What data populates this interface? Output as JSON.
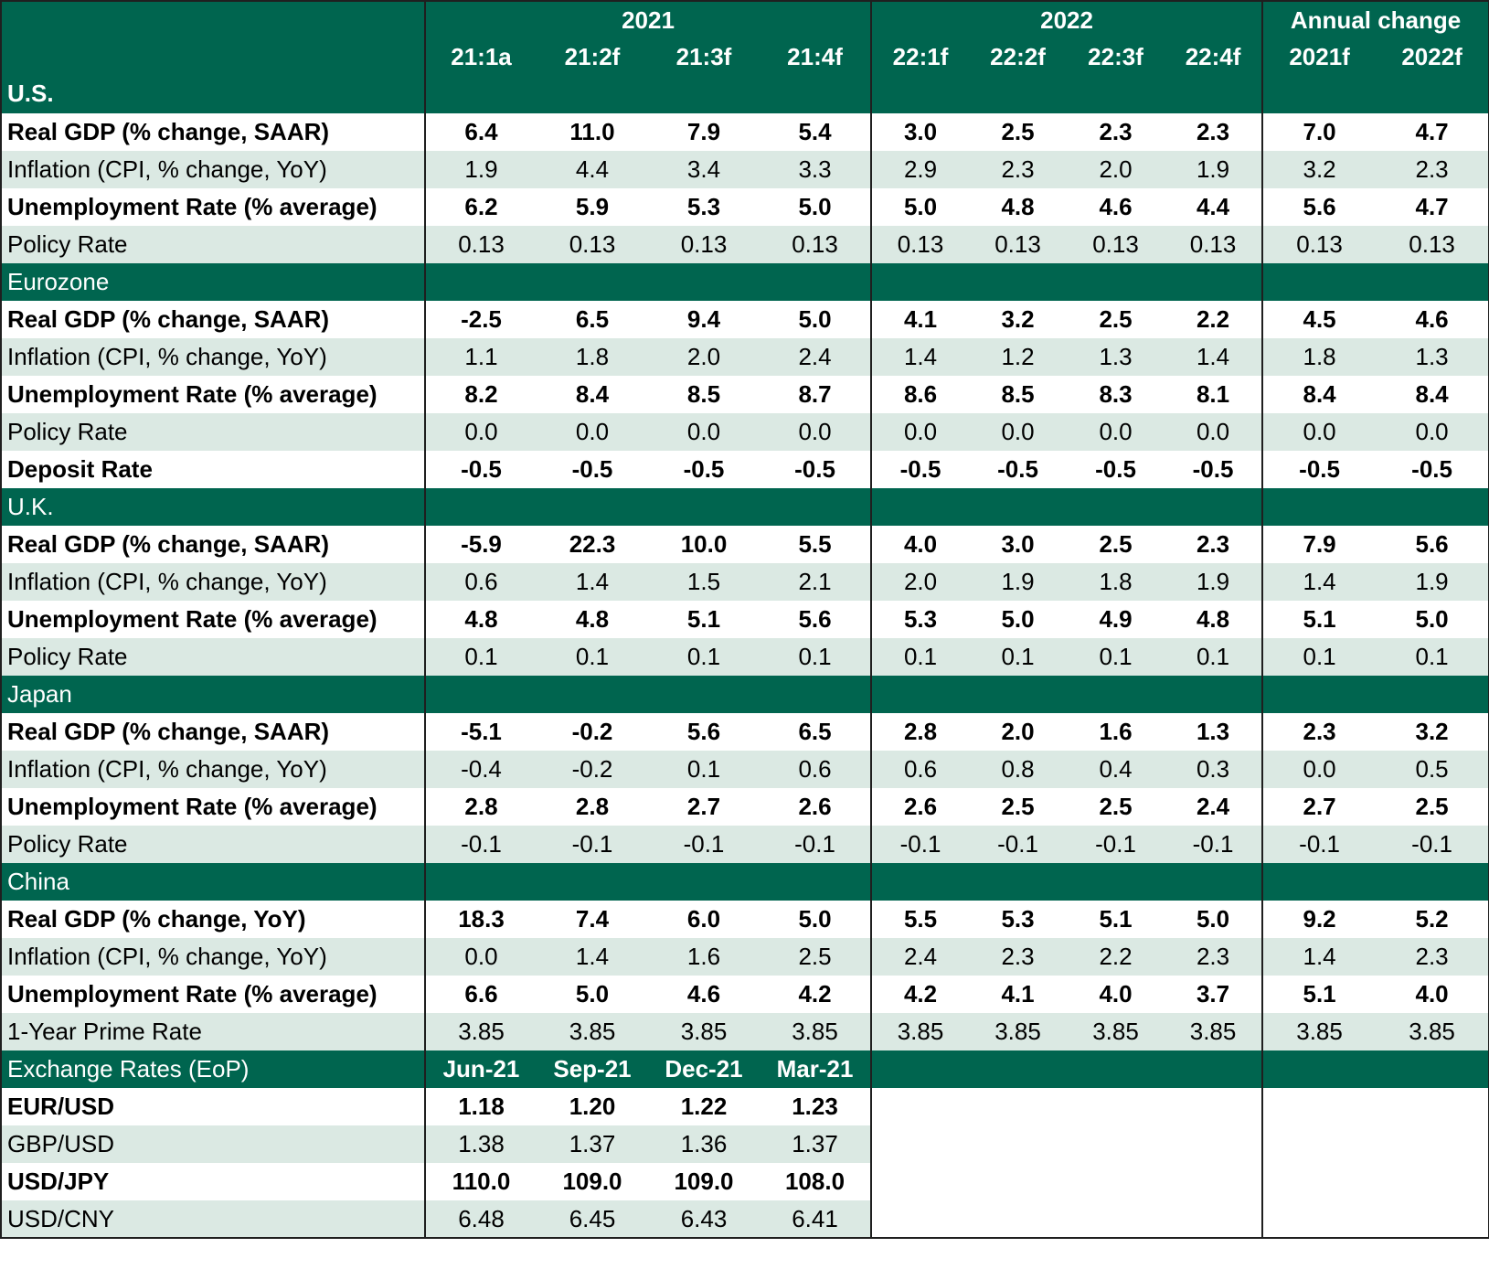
{
  "header": {
    "year_2021": "2021",
    "year_2022": "2022",
    "annual_change": "Annual change",
    "quarters": [
      "21:1a",
      "21:2f",
      "21:3f",
      "21:4f",
      "22:1f",
      "22:2f",
      "22:3f",
      "22:4f"
    ],
    "annual": [
      "2021f",
      "2022f"
    ],
    "first_region": "U.S."
  },
  "sections": [
    {
      "region": "U.S.",
      "rows": [
        {
          "label": "Real GDP (% change, SAAR)",
          "bold": true,
          "values": [
            "6.4",
            "11.0",
            "7.9",
            "5.4",
            "3.0",
            "2.5",
            "2.3",
            "2.3",
            "7.0",
            "4.7"
          ]
        },
        {
          "label": "Inflation (CPI, % change, YoY)",
          "bold": false,
          "values": [
            "1.9",
            "4.4",
            "3.4",
            "3.3",
            "2.9",
            "2.3",
            "2.0",
            "1.9",
            "3.2",
            "2.3"
          ]
        },
        {
          "label": "Unemployment Rate (% average)",
          "bold": true,
          "values": [
            "6.2",
            "5.9",
            "5.3",
            "5.0",
            "5.0",
            "4.8",
            "4.6",
            "4.4",
            "5.6",
            "4.7"
          ]
        },
        {
          "label": "Policy Rate",
          "bold": false,
          "values": [
            "0.13",
            "0.13",
            "0.13",
            "0.13",
            "0.13",
            "0.13",
            "0.13",
            "0.13",
            "0.13",
            "0.13"
          ]
        }
      ]
    },
    {
      "region": "Eurozone",
      "rows": [
        {
          "label": "Real GDP (% change, SAAR)",
          "bold": true,
          "values": [
            "-2.5",
            "6.5",
            "9.4",
            "5.0",
            "4.1",
            "3.2",
            "2.5",
            "2.2",
            "4.5",
            "4.6"
          ]
        },
        {
          "label": "Inflation (CPI, % change, YoY)",
          "bold": false,
          "values": [
            "1.1",
            "1.8",
            "2.0",
            "2.4",
            "1.4",
            "1.2",
            "1.3",
            "1.4",
            "1.8",
            "1.3"
          ]
        },
        {
          "label": "Unemployment Rate (% average)",
          "bold": true,
          "values": [
            "8.2",
            "8.4",
            "8.5",
            "8.7",
            "8.6",
            "8.5",
            "8.3",
            "8.1",
            "8.4",
            "8.4"
          ]
        },
        {
          "label": "Policy Rate",
          "bold": false,
          "values": [
            "0.0",
            "0.0",
            "0.0",
            "0.0",
            "0.0",
            "0.0",
            "0.0",
            "0.0",
            "0.0",
            "0.0"
          ]
        },
        {
          "label": "Deposit Rate",
          "bold": true,
          "values": [
            "-0.5",
            "-0.5",
            "-0.5",
            "-0.5",
            "-0.5",
            "-0.5",
            "-0.5",
            "-0.5",
            "-0.5",
            "-0.5"
          ]
        }
      ]
    },
    {
      "region": "U.K.",
      "rows": [
        {
          "label": "Real GDP (% change, SAAR)",
          "bold": true,
          "values": [
            "-5.9",
            "22.3",
            "10.0",
            "5.5",
            "4.0",
            "3.0",
            "2.5",
            "2.3",
            "7.9",
            "5.6"
          ]
        },
        {
          "label": "Inflation (CPI, % change, YoY)",
          "bold": false,
          "values": [
            "0.6",
            "1.4",
            "1.5",
            "2.1",
            "2.0",
            "1.9",
            "1.8",
            "1.9",
            "1.4",
            "1.9"
          ]
        },
        {
          "label": "Unemployment Rate (% average)",
          "bold": true,
          "values": [
            "4.8",
            "4.8",
            "5.1",
            "5.6",
            "5.3",
            "5.0",
            "4.9",
            "4.8",
            "5.1",
            "5.0"
          ]
        },
        {
          "label": "Policy Rate",
          "bold": false,
          "values": [
            "0.1",
            "0.1",
            "0.1",
            "0.1",
            "0.1",
            "0.1",
            "0.1",
            "0.1",
            "0.1",
            "0.1"
          ]
        }
      ]
    },
    {
      "region": "Japan",
      "rows": [
        {
          "label": "Real GDP (% change, SAAR)",
          "bold": true,
          "values": [
            "-5.1",
            "-0.2",
            "5.6",
            "6.5",
            "2.8",
            "2.0",
            "1.6",
            "1.3",
            "2.3",
            "3.2"
          ]
        },
        {
          "label": "Inflation (CPI, % change, YoY)",
          "bold": false,
          "values": [
            "-0.4",
            "-0.2",
            "0.1",
            "0.6",
            "0.6",
            "0.8",
            "0.4",
            "0.3",
            "0.0",
            "0.5"
          ]
        },
        {
          "label": "Unemployment Rate (% average)",
          "bold": true,
          "values": [
            "2.8",
            "2.8",
            "2.7",
            "2.6",
            "2.6",
            "2.5",
            "2.5",
            "2.4",
            "2.7",
            "2.5"
          ]
        },
        {
          "label": "Policy Rate",
          "bold": false,
          "values": [
            "-0.1",
            "-0.1",
            "-0.1",
            "-0.1",
            "-0.1",
            "-0.1",
            "-0.1",
            "-0.1",
            "-0.1",
            "-0.1"
          ]
        }
      ]
    },
    {
      "region": "China",
      "rows": [
        {
          "label": "Real GDP (% change, YoY)",
          "bold": true,
          "values": [
            "18.3",
            "7.4",
            "6.0",
            "5.0",
            "5.5",
            "5.3",
            "5.1",
            "5.0",
            "9.2",
            "5.2"
          ]
        },
        {
          "label": "Inflation (CPI, % change, YoY)",
          "bold": false,
          "values": [
            "0.0",
            "1.4",
            "1.6",
            "2.5",
            "2.4",
            "2.3",
            "2.2",
            "2.3",
            "1.4",
            "2.3"
          ]
        },
        {
          "label": "Unemployment Rate (% average)",
          "bold": true,
          "values": [
            "6.6",
            "5.0",
            "4.6",
            "4.2",
            "4.2",
            "4.1",
            "4.0",
            "3.7",
            "5.1",
            "4.0"
          ]
        },
        {
          "label": "1-Year Prime Rate",
          "bold": false,
          "values": [
            "3.85",
            "3.85",
            "3.85",
            "3.85",
            "3.85",
            "3.85",
            "3.85",
            "3.85",
            "3.85",
            "3.85"
          ]
        }
      ]
    }
  ],
  "exchange": {
    "title": "Exchange Rates (EoP)",
    "dates": [
      "Jun-21",
      "Sep-21",
      "Dec-21",
      "Mar-21"
    ],
    "rows": [
      {
        "label": "EUR/USD",
        "bold": true,
        "values": [
          "1.18",
          "1.20",
          "1.22",
          "1.23"
        ]
      },
      {
        "label": "GBP/USD",
        "bold": false,
        "values": [
          "1.38",
          "1.37",
          "1.36",
          "1.37"
        ]
      },
      {
        "label": "USD/JPY",
        "bold": true,
        "values": [
          "110.0",
          "109.0",
          "109.0",
          "108.0"
        ]
      },
      {
        "label": "USD/CNY",
        "bold": false,
        "values": [
          "6.48",
          "6.45",
          "6.43",
          "6.41"
        ]
      }
    ]
  },
  "colors": {
    "header_green": "#00654f",
    "row_tint": "#dbe9e3",
    "header_text": "#ffffff"
  }
}
